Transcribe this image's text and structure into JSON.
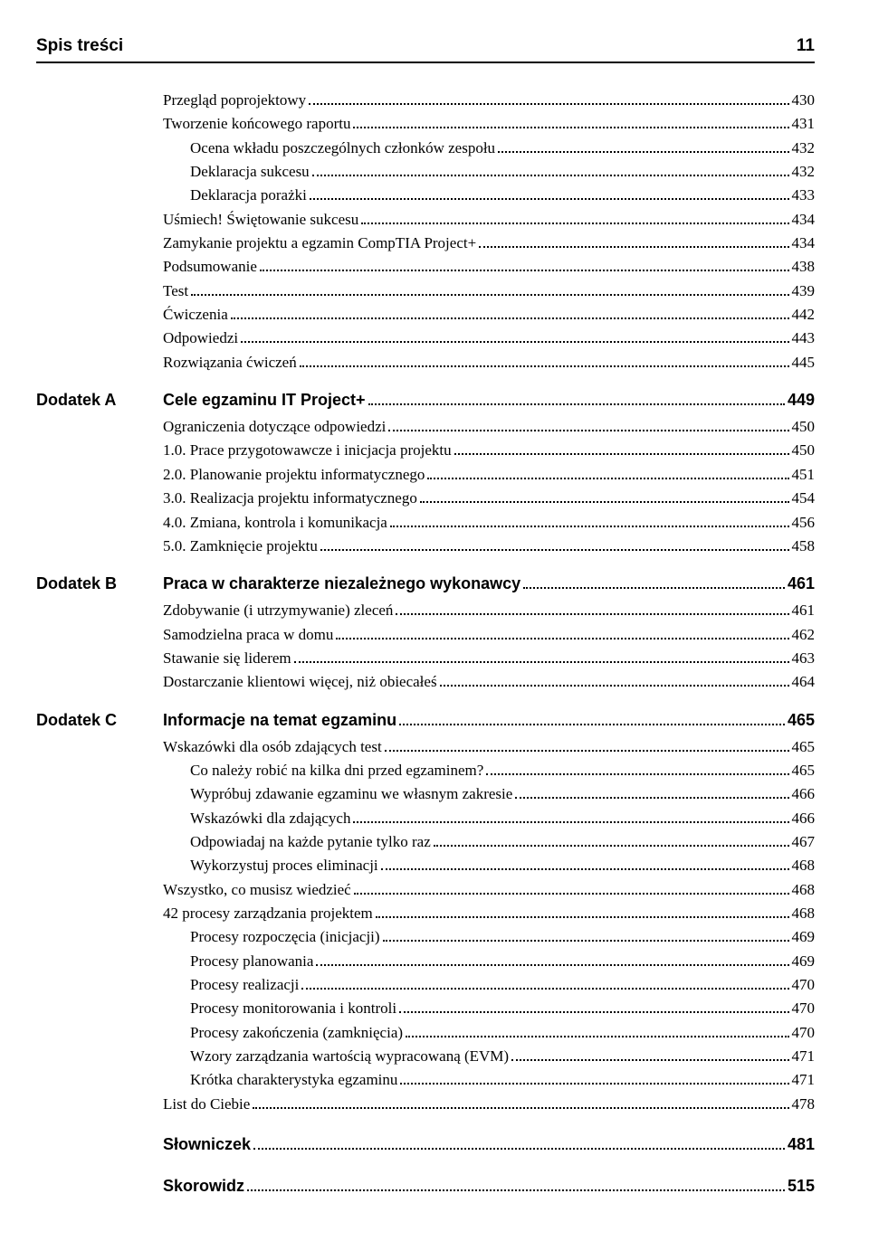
{
  "header": {
    "title": "Spis treści",
    "page": "11"
  },
  "blocks": [
    {
      "type": "entry",
      "indent": 0,
      "text": "Przegląd poprojektowy",
      "page": "430"
    },
    {
      "type": "entry",
      "indent": 0,
      "text": "Tworzenie końcowego raportu",
      "page": "431"
    },
    {
      "type": "entry",
      "indent": 1,
      "text": "Ocena wkładu poszczególnych członków zespołu",
      "page": "432"
    },
    {
      "type": "entry",
      "indent": 1,
      "text": "Deklaracja sukcesu",
      "page": "432"
    },
    {
      "type": "entry",
      "indent": 1,
      "text": "Deklaracja porażki",
      "page": "433"
    },
    {
      "type": "entry",
      "indent": 0,
      "text": "Uśmiech! Świętowanie sukcesu",
      "page": "434"
    },
    {
      "type": "entry",
      "indent": 0,
      "text": "Zamykanie projektu a egzamin CompTIA Project+",
      "page": "434"
    },
    {
      "type": "entry",
      "indent": 0,
      "text": "Podsumowanie",
      "page": "438"
    },
    {
      "type": "entry",
      "indent": 0,
      "text": "Test",
      "page": "439"
    },
    {
      "type": "entry",
      "indent": 0,
      "text": "Ćwiczenia",
      "page": "442"
    },
    {
      "type": "entry",
      "indent": 0,
      "text": "Odpowiedzi",
      "page": "443"
    },
    {
      "type": "entry",
      "indent": 0,
      "text": "Rozwiązania ćwiczeń",
      "page": "445"
    },
    {
      "type": "section",
      "label": "Dodatek A",
      "title": "Cele egzaminu IT Project+",
      "page": "449"
    },
    {
      "type": "entry",
      "indent": 0,
      "text": "Ograniczenia dotyczące odpowiedzi",
      "page": "450"
    },
    {
      "type": "entry",
      "indent": 0,
      "text": "1.0. Prace przygotowawcze i inicjacja projektu",
      "page": "450"
    },
    {
      "type": "entry",
      "indent": 0,
      "text": "2.0. Planowanie projektu informatycznego",
      "page": "451"
    },
    {
      "type": "entry",
      "indent": 0,
      "text": "3.0. Realizacja projektu informatycznego",
      "page": "454"
    },
    {
      "type": "entry",
      "indent": 0,
      "text": "4.0. Zmiana, kontrola i komunikacja",
      "page": "456"
    },
    {
      "type": "entry",
      "indent": 0,
      "text": "5.0. Zamknięcie projektu",
      "page": "458"
    },
    {
      "type": "section",
      "label": "Dodatek B",
      "title": "Praca w charakterze niezależnego wykonawcy",
      "page": "461"
    },
    {
      "type": "entry",
      "indent": 0,
      "text": "Zdobywanie (i utrzymywanie) zleceń",
      "page": "461"
    },
    {
      "type": "entry",
      "indent": 0,
      "text": "Samodzielna praca w domu",
      "page": "462"
    },
    {
      "type": "entry",
      "indent": 0,
      "text": "Stawanie się liderem",
      "page": "463"
    },
    {
      "type": "entry",
      "indent": 0,
      "text": "Dostarczanie klientowi więcej, niż obiecałeś",
      "page": "464"
    },
    {
      "type": "section",
      "label": "Dodatek C",
      "title": "Informacje na temat egzaminu",
      "page": "465"
    },
    {
      "type": "entry",
      "indent": 0,
      "text": "Wskazówki dla osób zdających test",
      "page": "465"
    },
    {
      "type": "entry",
      "indent": 1,
      "text": "Co należy robić na kilka dni przed egzaminem?",
      "page": "465"
    },
    {
      "type": "entry",
      "indent": 1,
      "text": "Wypróbuj zdawanie egzaminu we własnym zakresie",
      "page": "466"
    },
    {
      "type": "entry",
      "indent": 1,
      "text": "Wskazówki dla zdających",
      "page": "466"
    },
    {
      "type": "entry",
      "indent": 1,
      "text": "Odpowiadaj na każde pytanie tylko raz",
      "page": "467"
    },
    {
      "type": "entry",
      "indent": 1,
      "text": "Wykorzystuj proces eliminacji",
      "page": "468"
    },
    {
      "type": "entry",
      "indent": 0,
      "text": "Wszystko, co musisz wiedzieć",
      "page": "468"
    },
    {
      "type": "entry",
      "indent": 0,
      "text": "42 procesy zarządzania projektem",
      "page": "468"
    },
    {
      "type": "entry",
      "indent": 1,
      "text": "Procesy rozpoczęcia (inicjacji)",
      "page": "469"
    },
    {
      "type": "entry",
      "indent": 1,
      "text": "Procesy planowania",
      "page": "469"
    },
    {
      "type": "entry",
      "indent": 1,
      "text": "Procesy realizacji",
      "page": "470"
    },
    {
      "type": "entry",
      "indent": 1,
      "text": "Procesy monitorowania i kontroli",
      "page": "470"
    },
    {
      "type": "entry",
      "indent": 1,
      "text": "Procesy zakończenia (zamknięcia)",
      "page": "470"
    },
    {
      "type": "entry",
      "indent": 1,
      "text": "Wzory zarządzania wartością wypracowaną (EVM)",
      "page": "471"
    },
    {
      "type": "entry",
      "indent": 1,
      "text": "Krótka charakterystyka egzaminu",
      "page": "471"
    },
    {
      "type": "entry",
      "indent": 0,
      "text": "List do Ciebie",
      "page": "478"
    },
    {
      "type": "boldentry",
      "text": "Słowniczek",
      "page": "481"
    },
    {
      "type": "boldentry",
      "text": "Skorowidz",
      "page": "515"
    }
  ]
}
